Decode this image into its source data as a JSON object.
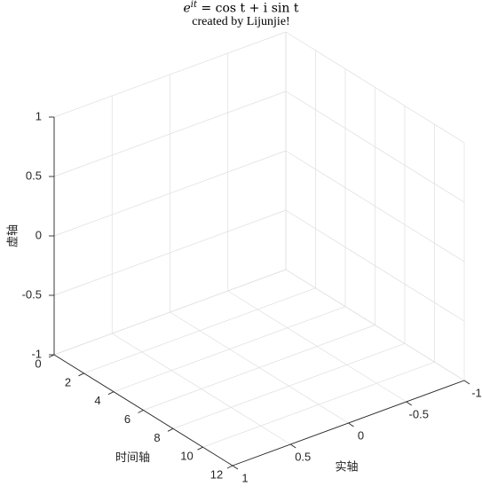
{
  "chart_data": {
    "type": "line",
    "title": {
      "e": "e",
      "sup": "it",
      "rest": " = cos t + i sin t"
    },
    "subtitle": "created by Lijunjie!",
    "xlabel": "时间轴",
    "ylabel": "实轴",
    "zlabel": "虚轴",
    "xlim": [
      0,
      12
    ],
    "ylim": [
      -1,
      1
    ],
    "zlim": [
      -1,
      1
    ],
    "x_ticks": [
      "0",
      "2",
      "4",
      "6",
      "8",
      "10",
      "12"
    ],
    "y_ticks": [
      "-1",
      "-0.5",
      "0",
      "0.5",
      "1"
    ],
    "z_ticks": [
      "-1",
      "-0.5",
      "0",
      "0.5",
      "1"
    ],
    "grid": true,
    "series": []
  }
}
